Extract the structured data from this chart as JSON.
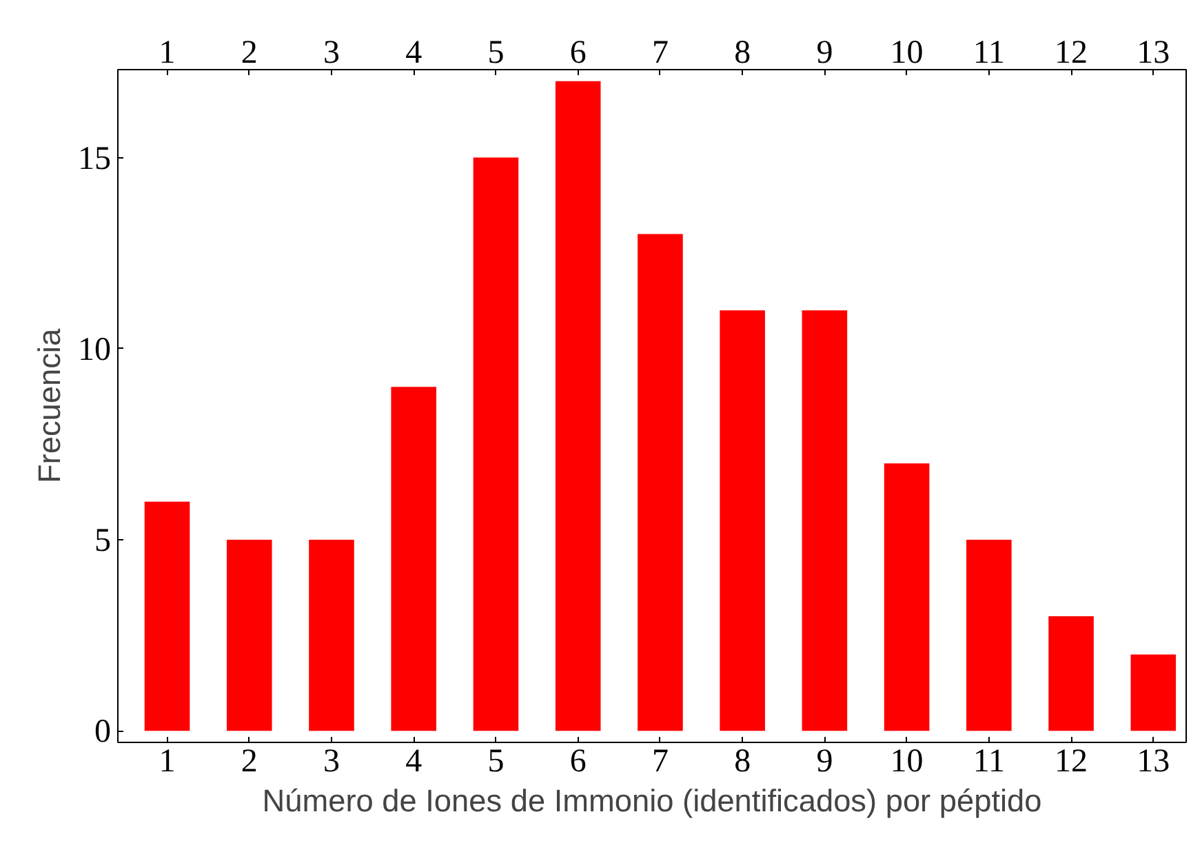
{
  "chart_data": {
    "type": "bar",
    "xlabel": "Número de Iones de Immonio (identificados) por péptido",
    "ylabel": "Frecuencia",
    "x": [
      1,
      2,
      3,
      4,
      5,
      6,
      7,
      8,
      9,
      10,
      11,
      12,
      13
    ],
    "values": [
      6,
      5,
      5,
      9,
      15,
      17,
      13,
      11,
      11,
      7,
      5,
      3,
      2
    ],
    "color": "#ff0000",
    "xlim": [
      0.4,
      13.4
    ],
    "xticks": [
      1,
      2,
      3,
      4,
      5,
      6,
      7,
      8,
      9,
      10,
      11,
      12,
      13
    ],
    "x2lim": [
      0.4,
      13.4
    ],
    "x2ticks": [
      1,
      2,
      3,
      4,
      5,
      6,
      7,
      8,
      9,
      10,
      11,
      12,
      13
    ],
    "ylim": [
      -0.3,
      17.3
    ],
    "yticks": [
      0,
      5,
      10,
      15
    ],
    "grid": false
  }
}
